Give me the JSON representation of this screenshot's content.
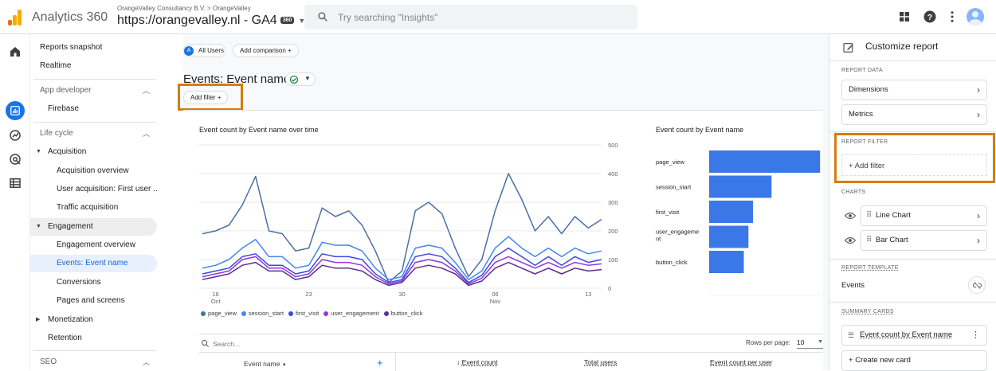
{
  "app": {
    "title": "Analytics 360",
    "account_line": "OrangeValley Consultancy B.V. > OrangeValley",
    "property": "https://orangevalley.nl - GA4",
    "property_badge": "360",
    "brand_colors": [
      "#f9ab00",
      "#e37400"
    ]
  },
  "search": {
    "placeholder": "Try searching \"Insights\""
  },
  "topbar_icons": [
    "apps-grid-icon",
    "help-icon",
    "more-vert-icon",
    "account-avatar"
  ],
  "rail_icons": [
    "home-icon",
    "reports-icon",
    "explore-icon",
    "advertising-icon",
    "configure-icon"
  ],
  "nav": {
    "items": [
      {
        "label": "Reports snapshot"
      },
      {
        "label": "Realtime"
      },
      {
        "label": "App developer"
      },
      {
        "label": "Firebase"
      },
      {
        "label": "Life cycle"
      },
      {
        "label": "Acquisition"
      },
      {
        "label": "Acquisition overview"
      },
      {
        "label": "User acquisition: First user ..."
      },
      {
        "label": "Traffic acquisition"
      },
      {
        "label": "Engagement"
      },
      {
        "label": "Engagement overview"
      },
      {
        "label": "Events: Event name"
      },
      {
        "label": "Conversions"
      },
      {
        "label": "Pages and screens"
      },
      {
        "label": "Monetization"
      },
      {
        "label": "Retention"
      },
      {
        "label": "SEO"
      }
    ]
  },
  "main": {
    "segment": {
      "avatar": "A",
      "label": "All Users"
    },
    "add_comparison": "Add comparison",
    "title": "Events: Event name",
    "add_filter": "Add filter",
    "line_chart_title": "Event count by Event name over time",
    "bar_chart_title": "Event count by Event name",
    "table": {
      "search_placeholder": "Search...",
      "rows_per_page_label": "Rows per page:",
      "rows_per_page": "10",
      "columns": [
        "Event name",
        "Event count",
        "Total users",
        "Event count per user"
      ]
    }
  },
  "chart_data": [
    {
      "type": "line",
      "title": "Event count by Event name over time",
      "x": [
        "Oct 15",
        "Oct 16",
        "Oct 17",
        "Oct 18",
        "Oct 19",
        "Oct 20",
        "Oct 21",
        "Oct 22",
        "Oct 23",
        "Oct 24",
        "Oct 25",
        "Oct 26",
        "Oct 27",
        "Oct 28",
        "Oct 29",
        "Oct 30",
        "Oct 31",
        "Nov 1",
        "Nov 2",
        "Nov 3",
        "Nov 4",
        "Nov 5",
        "Nov 6",
        "Nov 7",
        "Nov 8",
        "Nov 9",
        "Nov 10",
        "Nov 11",
        "Nov 12",
        "Nov 13",
        "Nov 14"
      ],
      "x_tick_labels": [
        {
          "label": "16",
          "sub": "Oct"
        },
        {
          "label": "23",
          "sub": ""
        },
        {
          "label": "30",
          "sub": ""
        },
        {
          "label": "06",
          "sub": "Nov"
        },
        {
          "label": "13",
          "sub": ""
        }
      ],
      "ylim": [
        0,
        500
      ],
      "y_ticks": [
        "500",
        "400",
        "300",
        "200",
        "100",
        "0"
      ],
      "series": [
        {
          "name": "page_view",
          "color": "#4a6fa5",
          "values": [
            190,
            200,
            220,
            290,
            390,
            200,
            190,
            130,
            140,
            280,
            250,
            270,
            220,
            130,
            20,
            60,
            270,
            300,
            260,
            140,
            40,
            100,
            270,
            400,
            310,
            200,
            250,
            190,
            250,
            210,
            240
          ]
        },
        {
          "name": "session_start",
          "color": "#4285f4",
          "values": [
            70,
            80,
            100,
            140,
            170,
            110,
            110,
            70,
            80,
            160,
            150,
            150,
            130,
            70,
            30,
            40,
            140,
            150,
            140,
            90,
            30,
            60,
            140,
            180,
            140,
            110,
            140,
            110,
            140,
            120,
            130
          ]
        },
        {
          "name": "first_visit",
          "color": "#3b49df",
          "values": [
            50,
            60,
            70,
            110,
            120,
            80,
            80,
            50,
            60,
            120,
            110,
            110,
            100,
            50,
            20,
            30,
            110,
            120,
            110,
            70,
            20,
            45,
            110,
            140,
            110,
            80,
            110,
            80,
            110,
            90,
            100
          ]
        },
        {
          "name": "user_engagement",
          "color": "#9334e6",
          "values": [
            40,
            50,
            60,
            100,
            110,
            70,
            70,
            40,
            50,
            100,
            90,
            90,
            80,
            40,
            15,
            25,
            90,
            100,
            90,
            60,
            15,
            35,
            90,
            110,
            90,
            70,
            90,
            70,
            90,
            80,
            85
          ]
        },
        {
          "name": "button_click",
          "color": "#5c2d91",
          "values": [
            30,
            40,
            50,
            80,
            90,
            60,
            60,
            30,
            40,
            80,
            70,
            70,
            60,
            30,
            10,
            20,
            70,
            80,
            70,
            50,
            10,
            25,
            70,
            90,
            70,
            50,
            70,
            50,
            70,
            60,
            65
          ]
        }
      ]
    },
    {
      "type": "bar",
      "orientation": "horizontal",
      "title": "Event count by Event name",
      "categories": [
        "page_view",
        "session_start",
        "first_visit",
        "user_engageme nt",
        "button_click"
      ],
      "values": [
        4800,
        2700,
        1900,
        1700,
        1500
      ],
      "xlim": [
        0,
        5000
      ],
      "color": "#3b78e7"
    }
  ],
  "right_panel": {
    "title": "Customize report",
    "report_data_heading": "REPORT DATA",
    "dimensions": "Dimensions",
    "metrics": "Metrics",
    "report_filter_heading": "REPORT FILTER",
    "add_filter": "Add filter",
    "charts_heading": "CHARTS",
    "line_chart": "Line Chart",
    "bar_chart": "Bar Chart",
    "template_heading": "REPORT TEMPLATE",
    "template_name": "Events",
    "summary_heading": "SUMMARY CARDS",
    "summary_card": "Event count by Event name",
    "create_card": "Create new card"
  }
}
